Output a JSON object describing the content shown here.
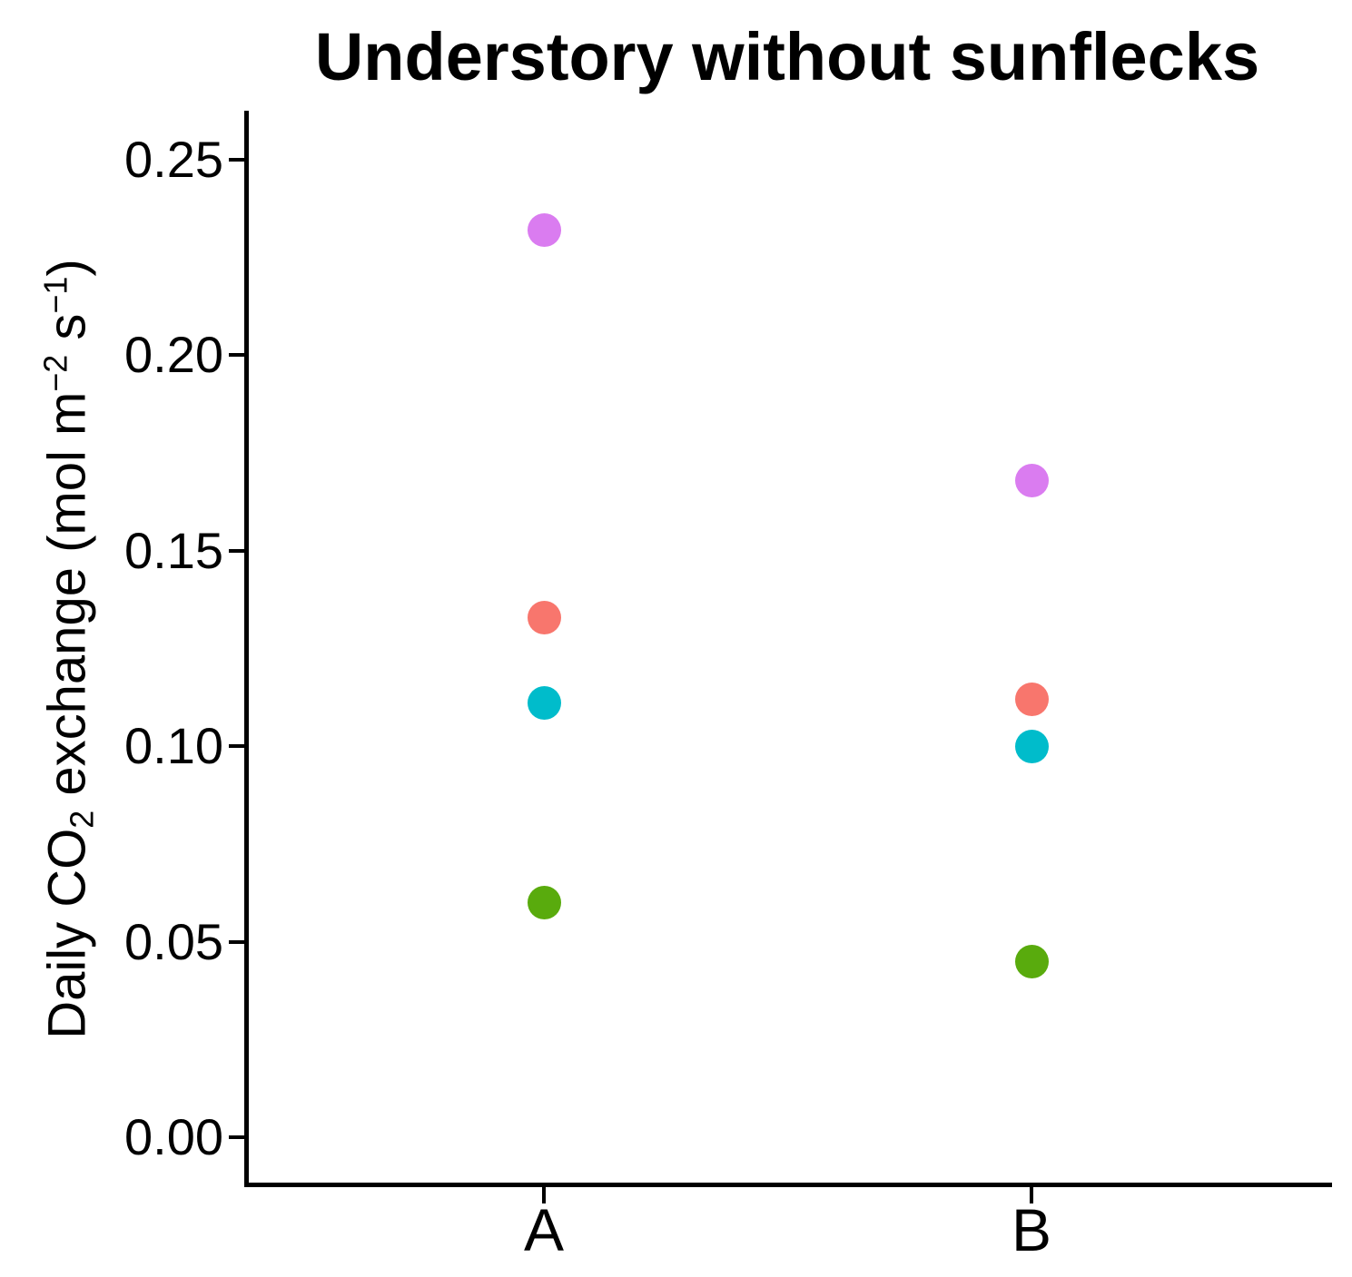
{
  "chart_data": {
    "type": "scatter",
    "title": "Understory without sunflecks",
    "xlabel": "",
    "ylabel": "Daily CO2 exchange (mol m-2 s-1)",
    "ylabel_parts": [
      {
        "text": "Daily CO",
        "script": "normal"
      },
      {
        "text": "2",
        "script": "sub"
      },
      {
        "text": " exchange (mol m",
        "script": "normal"
      },
      {
        "text": "−2",
        "script": "sup"
      },
      {
        "text": " s",
        "script": "normal"
      },
      {
        "text": "−1",
        "script": "sup"
      },
      {
        "text": ")",
        "script": "normal"
      }
    ],
    "categories": [
      "A",
      "B"
    ],
    "series": [
      {
        "name": "purple",
        "color": "#DA7CF0",
        "values": [
          0.232,
          0.168
        ]
      },
      {
        "name": "red",
        "color": "#F8766D",
        "values": [
          0.133,
          0.112
        ]
      },
      {
        "name": "cyan",
        "color": "#00BCCB",
        "values": [
          0.111,
          0.1
        ]
      },
      {
        "name": "green",
        "color": "#59AB0D",
        "values": [
          0.06,
          0.045
        ]
      }
    ],
    "yticks": [
      "0.00",
      "0.05",
      "0.10",
      "0.15",
      "0.20",
      "0.25"
    ],
    "ylim": [
      -0.012,
      0.262
    ],
    "grid": false,
    "legend": "none",
    "axis_color": "#000000",
    "background_color": "#FFFFFF"
  }
}
